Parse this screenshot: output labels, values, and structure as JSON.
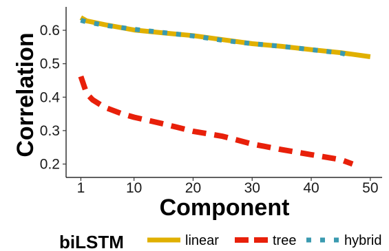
{
  "chart_data": {
    "type": "line",
    "xlabel": "Component",
    "ylabel": "Correlation",
    "xlim": [
      -1.5,
      52
    ],
    "ylim": [
      0.16,
      0.67
    ],
    "xticks": [
      1,
      10,
      20,
      30,
      40,
      50
    ],
    "yticks": [
      0.2,
      0.3,
      0.4,
      0.5,
      0.6
    ],
    "ytick_labels": [
      "0.2",
      "0.3",
      "0.4",
      "0.5",
      "0.6"
    ],
    "grid": false,
    "legend": {
      "title": "biLSTM",
      "position": "bottom"
    },
    "series": [
      {
        "name": "linear",
        "color": "#E0B000",
        "style": "solid",
        "x": [
          1,
          2,
          5,
          10,
          15,
          20,
          25,
          30,
          35,
          40,
          45,
          50
        ],
        "y": [
          0.638,
          0.628,
          0.617,
          0.601,
          0.592,
          0.584,
          0.572,
          0.56,
          0.552,
          0.542,
          0.533,
          0.521
        ]
      },
      {
        "name": "tree",
        "color": "#E8200A",
        "style": "dashed",
        "x": [
          1,
          2,
          3,
          5,
          8,
          10,
          15,
          20,
          25,
          30,
          35,
          40,
          45,
          47
        ],
        "y": [
          0.462,
          0.41,
          0.392,
          0.37,
          0.35,
          0.34,
          0.32,
          0.298,
          0.283,
          0.26,
          0.243,
          0.228,
          0.213,
          0.2
        ]
      },
      {
        "name": "hybrid",
        "color": "#3A9AB0",
        "style": "dotted",
        "x": [
          1,
          2,
          5,
          10,
          15,
          20,
          25,
          30,
          35,
          40,
          45,
          47
        ],
        "y": [
          0.63,
          0.625,
          0.615,
          0.603,
          0.593,
          0.583,
          0.57,
          0.56,
          0.552,
          0.542,
          0.532,
          0.523
        ]
      }
    ]
  }
}
